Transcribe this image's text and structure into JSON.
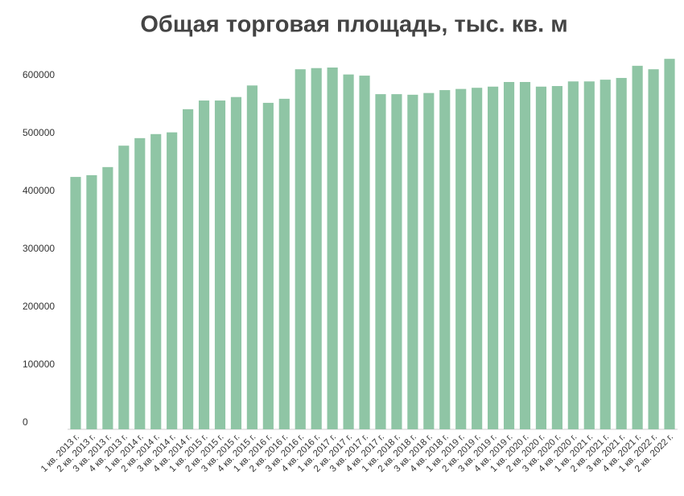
{
  "chart_data": {
    "type": "bar",
    "title": "Общая торговая площадь, тыс. кв. м",
    "categories": [
      "1 кв. 2013 г.",
      "2 кв. 2013 г.",
      "3 кв. 2013 г.",
      "4 кв. 2013 г.",
      "1 кв. 2014 г.",
      "2 кв. 2014 г.",
      "3 кв. 2014 г.",
      "4 кв. 2014 г.",
      "1 кв. 2015 г.",
      "2 кв. 2015 г.",
      "3 кв. 2015 г.",
      "4 кв. 2015 г.",
      "1 кв. 2016 г.",
      "2 кв. 2016 г.",
      "3 кв. 2016 г.",
      "4 кв. 2016 г.",
      "1 кв. 2017 г.",
      "2 кв. 2017 г.",
      "3 кв. 2017 г.",
      "4 кв. 2017 г.",
      "1 кв. 2018 г.",
      "2 кв. 2018 г.",
      "3 кв. 2018 г.",
      "4 кв. 2018 г.",
      "1 кв. 2019 г.",
      "2 кв. 2019 г.",
      "3 кв. 2019 г.",
      "4 кв. 2019 г.",
      "1 кв. 2020 г.",
      "2 кв. 2020 г.",
      "3 кв. 2020 г.",
      "4 кв. 2020 г.",
      "1 кв. 2021 г.",
      "2 кв. 2021 г.",
      "3 кв. 2021 г.",
      "4 кв. 2021 г.",
      "1 кв. 2022 г.",
      "2 кв. 2022 г."
    ],
    "values": [
      436000,
      439000,
      453000,
      490000,
      503000,
      510000,
      513000,
      553000,
      568000,
      568000,
      574000,
      594000,
      564000,
      571000,
      622000,
      624000,
      625000,
      613000,
      611000,
      579000,
      579000,
      578000,
      581000,
      586000,
      588000,
      590000,
      592000,
      600000,
      600000,
      592000,
      593000,
      601000,
      601000,
      604000,
      607000,
      628000,
      622000,
      640000
    ],
    "color": "#8fc5a5",
    "ylim": [
      0,
      650000
    ],
    "yticks": [
      0,
      100000,
      200000,
      300000,
      400000,
      500000,
      600000
    ],
    "grid": false
  }
}
